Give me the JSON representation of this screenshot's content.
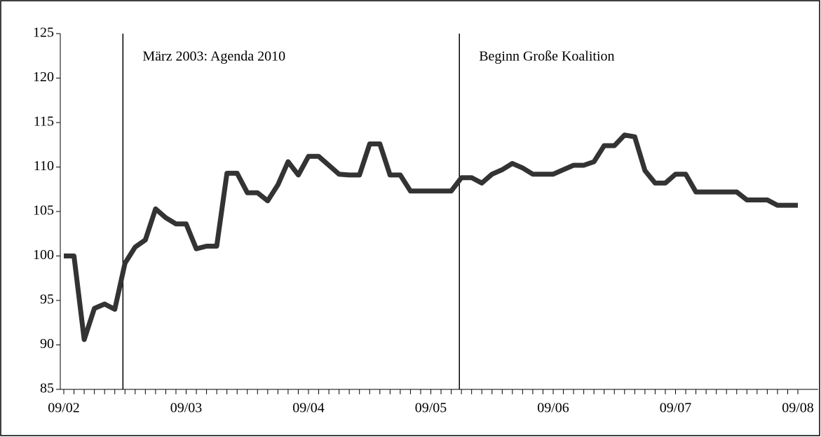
{
  "chart_data": {
    "type": "line",
    "categories": [
      "09/02",
      null,
      null,
      null,
      null,
      null,
      null,
      null,
      null,
      null,
      null,
      null,
      "09/03",
      null,
      null,
      null,
      null,
      null,
      null,
      null,
      null,
      null,
      null,
      null,
      "09/04",
      null,
      null,
      null,
      null,
      null,
      null,
      null,
      null,
      null,
      null,
      null,
      "09/05",
      null,
      null,
      null,
      null,
      null,
      null,
      null,
      null,
      null,
      null,
      null,
      "09/06",
      null,
      null,
      null,
      null,
      null,
      null,
      null,
      null,
      null,
      null,
      null,
      "09/07",
      null,
      null,
      null,
      null,
      null,
      null,
      null,
      null,
      null,
      null,
      null,
      "09/08"
    ],
    "values": [
      100,
      100,
      90.6,
      94.1,
      94.6,
      94.0,
      99.2,
      101.0,
      101.8,
      105.3,
      104.3,
      103.6,
      103.6,
      100.8,
      101.1,
      101.1,
      109.3,
      109.3,
      107.1,
      107.1,
      106.2,
      108.0,
      110.6,
      109.1,
      111.2,
      111.2,
      110.2,
      109.2,
      109.1,
      109.1,
      112.6,
      112.6,
      109.1,
      109.1,
      107.3,
      107.3,
      107.3,
      107.3,
      107.3,
      108.8,
      108.8,
      108.2,
      109.2,
      109.7,
      110.4,
      109.9,
      109.2,
      109.2,
      109.2,
      109.7,
      110.2,
      110.2,
      110.6,
      112.4,
      112.4,
      113.6,
      113.4,
      109.6,
      108.2,
      108.2,
      109.2,
      109.2,
      107.2,
      107.2,
      107.2,
      107.2,
      107.2,
      106.3,
      106.3,
      106.3,
      105.7,
      105.7,
      105.7
    ],
    "color": "#333333",
    "ylim": [
      85,
      125
    ],
    "yticks": [
      85,
      90,
      95,
      100,
      105,
      110,
      115,
      120,
      125
    ],
    "annotations": [
      {
        "at": 5.8,
        "label": "März 2003: Agenda 2010"
      },
      {
        "at": 38.8,
        "label": "Beginn Große Koalition"
      }
    ]
  }
}
